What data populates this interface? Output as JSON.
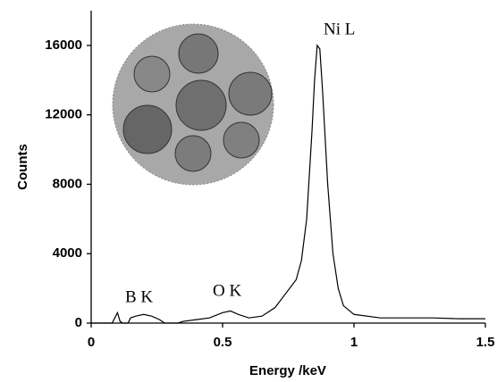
{
  "chart_data": {
    "type": "line",
    "x_label": "Energy /keV",
    "y_label": "Counts",
    "annotations": [
      "B K",
      "O K",
      "Ni L"
    ],
    "x": [
      0.0,
      0.08,
      0.09,
      0.1,
      0.11,
      0.12,
      0.14,
      0.15,
      0.17,
      0.2,
      0.23,
      0.26,
      0.28,
      0.33,
      0.35,
      0.4,
      0.45,
      0.5,
      0.53,
      0.56,
      0.6,
      0.65,
      0.7,
      0.74,
      0.78,
      0.8,
      0.82,
      0.84,
      0.85,
      0.86,
      0.87,
      0.88,
      0.9,
      0.92,
      0.94,
      0.96,
      1.0,
      1.1,
      1.2,
      1.3,
      1.4,
      1.5
    ],
    "values": [
      0,
      0,
      300,
      600,
      100,
      0,
      0,
      300,
      400,
      500,
      400,
      200,
      0,
      0,
      100,
      200,
      300,
      600,
      700,
      500,
      300,
      400,
      900,
      1700,
      2500,
      3600,
      6000,
      11000,
      14000,
      16000,
      15800,
      13500,
      8000,
      4000,
      2000,
      1000,
      500,
      300,
      300,
      300,
      250,
      250
    ],
    "color": "#000000",
    "xlim": [
      0,
      1.5
    ],
    "xticks": [
      0,
      0.5,
      1,
      1.5
    ],
    "ylim": [
      0,
      18000
    ],
    "yticks": [
      0,
      4000,
      8000,
      12000,
      16000
    ]
  }
}
